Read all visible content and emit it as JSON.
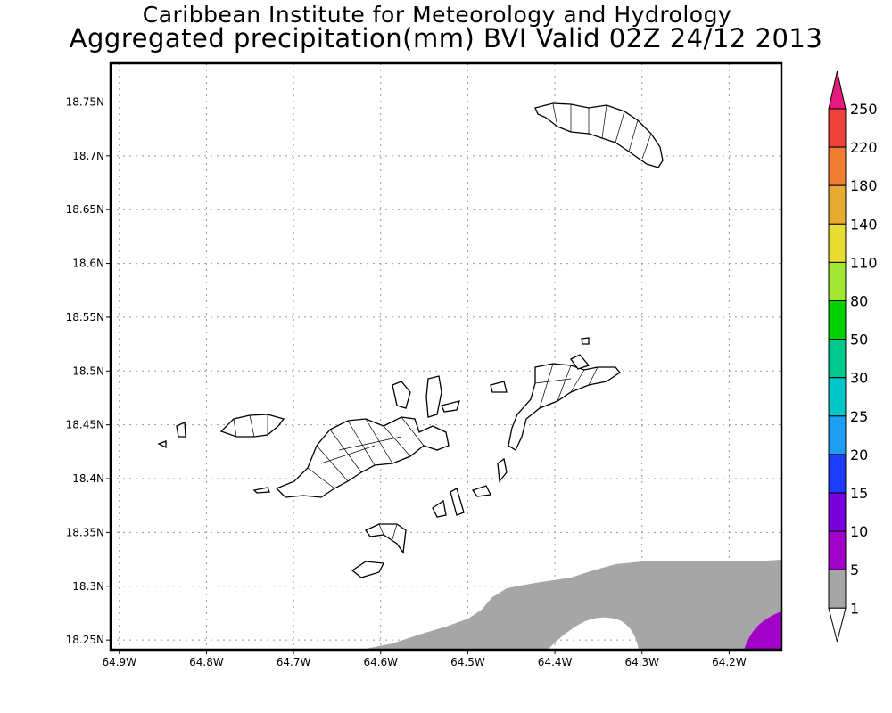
{
  "title": {
    "line1": "Caribbean Institute for Meteorology and Hydrology",
    "line2": "Aggregated precipitation(mm) BVI Valid 02Z 24/12 2013"
  },
  "map": {
    "lon_range": [
      -64.91,
      -64.14
    ],
    "lat_range": [
      18.241,
      18.786
    ],
    "lat_labels": [
      {
        "value": 18.75,
        "text": "18.75N"
      },
      {
        "value": 18.7,
        "text": "18.7N"
      },
      {
        "value": 18.65,
        "text": "18.65N"
      },
      {
        "value": 18.6,
        "text": "18.6N"
      },
      {
        "value": 18.55,
        "text": "18.55N"
      },
      {
        "value": 18.5,
        "text": "18.5N"
      },
      {
        "value": 18.45,
        "text": "18.45N"
      },
      {
        "value": 18.4,
        "text": "18.4N"
      },
      {
        "value": 18.35,
        "text": "18.35N"
      },
      {
        "value": 18.3,
        "text": "18.3N"
      },
      {
        "value": 18.25,
        "text": "18.25N"
      }
    ],
    "lon_labels": [
      {
        "value": -64.9,
        "text": "64.9W"
      },
      {
        "value": -64.8,
        "text": "64.8W"
      },
      {
        "value": -64.7,
        "text": "64.7W"
      },
      {
        "value": -64.6,
        "text": "64.6W"
      },
      {
        "value": -64.5,
        "text": "64.5W"
      },
      {
        "value": -64.4,
        "text": "64.4W"
      },
      {
        "value": -64.3,
        "text": "64.3W"
      },
      {
        "value": -64.2,
        "text": "64.2W"
      }
    ],
    "precip_colors": {
      "1-5": "#a6a6a6",
      "5-10": "#a000c8"
    }
  },
  "colorbar": {
    "levels": [
      "250",
      "220",
      "180",
      "140",
      "110",
      "80",
      "50",
      "30",
      "25",
      "20",
      "15",
      "10",
      "5",
      "1"
    ],
    "colors": [
      "#e6197f",
      "#f0403c",
      "#f07e32",
      "#e6ac32",
      "#e6dc32",
      "#a0e632",
      "#00d200",
      "#00c88c",
      "#00c8c8",
      "#1e9ef0",
      "#1e3cff",
      "#7800dc",
      "#a000c8",
      "#a6a6a6",
      "#ffffff"
    ]
  }
}
